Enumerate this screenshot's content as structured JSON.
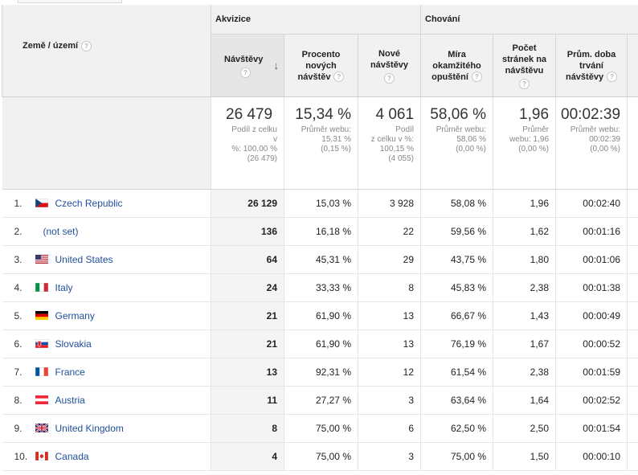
{
  "header": {
    "dimension_label": "Země / území",
    "groups": {
      "acquisition": "Akvizice",
      "behavior": "Chování"
    },
    "metrics": {
      "visits": "Návštěvy",
      "pct_new_1": "Procento",
      "pct_new_2": "nových",
      "pct_new_3": "návštěv",
      "new_1": "Nové",
      "new_2": "návštěvy",
      "bounce_1": "Míra",
      "bounce_2": "okamžitého",
      "bounce_3": "opuštění",
      "pages_1": "Počet",
      "pages_2": "stránek na",
      "pages_3": "návštěvu",
      "dur_1": "Prům. doba",
      "dur_2": "trvání",
      "dur_3": "návštěvy"
    },
    "help_glyph": "?",
    "sort_glyph": "↓"
  },
  "totals": {
    "visits": {
      "value": "26 479",
      "l1": "Podíl z celku v",
      "l2": "%: 100,00 %",
      "l3": "(26 479)"
    },
    "pct_new": {
      "value": "15,34 %",
      "l1": "Průměr webu:",
      "l2": "15,31 %",
      "l3": "(0,15 %)"
    },
    "new": {
      "value": "4 061",
      "l1": "Podíl",
      "l2": "z celku v %:",
      "l3": "100,15 %",
      "l4": "(4 055)"
    },
    "bounce": {
      "value": "58,06 %",
      "l1": "Průměr webu:",
      "l2": "58,06 %",
      "l3": "(0,00 %)"
    },
    "pages": {
      "value": "1,96",
      "l1": "Průměr",
      "l2": "webu: 1,96",
      "l3": "(0,00 %)"
    },
    "dur": {
      "value": "00:02:39",
      "l1": "Průměr webu:",
      "l2": "00:02:39",
      "l3": "(0,00 %)"
    }
  },
  "rows": [
    {
      "idx": "1.",
      "country": "Czech Republic",
      "flag": "cz-flag-icon",
      "visits": "26 129",
      "pct_new": "15,03 %",
      "new": "3 928",
      "bounce": "58,08 %",
      "pages": "1,96",
      "dur": "00:02:40"
    },
    {
      "idx": "2.",
      "country": "(not set)",
      "flag": "",
      "visits": "136",
      "pct_new": "16,18 %",
      "new": "22",
      "bounce": "59,56 %",
      "pages": "1,62",
      "dur": "00:01:16"
    },
    {
      "idx": "3.",
      "country": "United States",
      "flag": "us-flag-icon",
      "visits": "64",
      "pct_new": "45,31 %",
      "new": "29",
      "bounce": "43,75 %",
      "pages": "1,80",
      "dur": "00:01:06"
    },
    {
      "idx": "4.",
      "country": "Italy",
      "flag": "it-flag-icon",
      "visits": "24",
      "pct_new": "33,33 %",
      "new": "8",
      "bounce": "45,83 %",
      "pages": "2,38",
      "dur": "00:01:38"
    },
    {
      "idx": "5.",
      "country": "Germany",
      "flag": "de-flag-icon",
      "visits": "21",
      "pct_new": "61,90 %",
      "new": "13",
      "bounce": "66,67 %",
      "pages": "1,43",
      "dur": "00:00:49"
    },
    {
      "idx": "6.",
      "country": "Slovakia",
      "flag": "sk-flag-icon",
      "visits": "21",
      "pct_new": "61,90 %",
      "new": "13",
      "bounce": "76,19 %",
      "pages": "1,67",
      "dur": "00:00:52"
    },
    {
      "idx": "7.",
      "country": "France",
      "flag": "fr-flag-icon",
      "visits": "13",
      "pct_new": "92,31 %",
      "new": "12",
      "bounce": "61,54 %",
      "pages": "2,38",
      "dur": "00:01:59"
    },
    {
      "idx": "8.",
      "country": "Austria",
      "flag": "at-flag-icon",
      "visits": "11",
      "pct_new": "27,27 %",
      "new": "3",
      "bounce": "63,64 %",
      "pages": "1,64",
      "dur": "00:02:52"
    },
    {
      "idx": "9.",
      "country": "United Kingdom",
      "flag": "gb-flag-icon",
      "visits": "8",
      "pct_new": "75,00 %",
      "new": "6",
      "bounce": "62,50 %",
      "pages": "2,50",
      "dur": "00:01:54"
    },
    {
      "idx": "10.",
      "country": "Canada",
      "flag": "ca-flag-icon",
      "visits": "4",
      "pct_new": "75,00 %",
      "new": "3",
      "bounce": "75,00 %",
      "pages": "1,50",
      "dur": "00:00:10"
    }
  ],
  "colors": {
    "link": "#1f4f9a",
    "header_bg": "#f1f1f1",
    "sorted_col": "#f4f4f4"
  }
}
